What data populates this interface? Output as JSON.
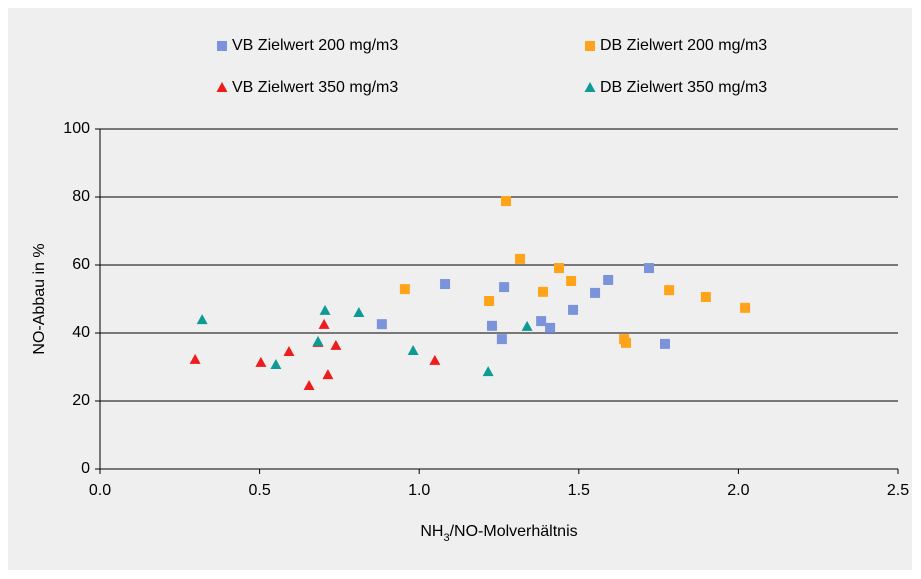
{
  "chart_data": {
    "type": "scatter",
    "xlabel_parts": [
      "NH",
      "3",
      "/NO-Molverhältnis"
    ],
    "ylabel": "NO-Abbau in %",
    "xlim": [
      0,
      2.5
    ],
    "ylim": [
      0,
      100
    ],
    "xticks": [
      {
        "value": 0,
        "label": "0.0"
      },
      {
        "value": 0.5,
        "label": "0.5"
      },
      {
        "value": 1,
        "label": "1.0"
      },
      {
        "value": 1.5,
        "label": "1.5"
      },
      {
        "value": 2,
        "label": "2.0"
      },
      {
        "value": 2.5,
        "label": "2.5"
      }
    ],
    "yticks": [
      0,
      20,
      40,
      60,
      80,
      100
    ],
    "grid": true,
    "legend": "top",
    "series": [
      {
        "name": "VB Zielwert 200 mg/m3",
        "color": "#7b93db",
        "marker": "square",
        "x": [
          0.883,
          1.081,
          1.228,
          1.259,
          1.266,
          1.382,
          1.41,
          1.482,
          1.551,
          1.592,
          1.72,
          1.77
        ],
        "values": [
          42.6,
          54.4,
          42.1,
          38.2,
          53.5,
          43.5,
          41.5,
          46.8,
          51.8,
          55.6,
          59.1,
          36.8
        ]
      },
      {
        "name": "DB Zielwert 200 mg/m3",
        "color": "#ffa31a",
        "marker": "square",
        "x": [
          0.955,
          1.219,
          1.272,
          1.316,
          1.388,
          1.438,
          1.476,
          1.642,
          1.648,
          1.783,
          1.898,
          2.021
        ],
        "values": [
          52.9,
          49.4,
          78.8,
          61.8,
          52.1,
          59.1,
          55.3,
          38.2,
          37.1,
          52.6,
          50.6,
          47.4
        ]
      },
      {
        "name": "VB Zielwert 350 mg/m3",
        "color": "#ee1c1c",
        "marker": "triangle",
        "x": [
          0.298,
          0.504,
          0.592,
          0.655,
          0.683,
          0.702,
          0.714,
          0.739,
          1.049
        ],
        "values": [
          32.1,
          31.2,
          34.4,
          24.4,
          37.1,
          42.4,
          27.6,
          36.2,
          31.8
        ]
      },
      {
        "name": "DB Zielwert 350 mg/m3",
        "color": "#0e9b96",
        "marker": "triangle",
        "x": [
          0.32,
          0.551,
          0.683,
          0.705,
          0.811,
          0.981,
          1.216,
          1.338
        ],
        "values": [
          43.8,
          30.6,
          37.4,
          46.5,
          45.9,
          34.7,
          28.5,
          41.8
        ]
      }
    ]
  }
}
